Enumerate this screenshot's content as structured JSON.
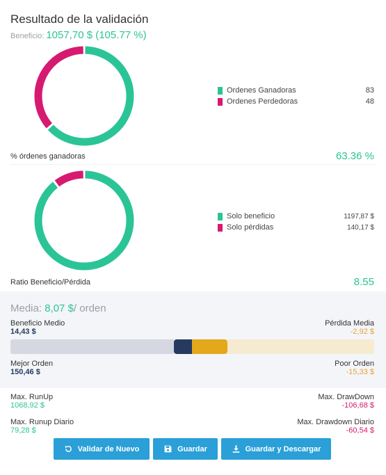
{
  "header": {
    "title": "Resultado de la validación",
    "benefit_label": "Beneficio:",
    "benefit_value": "1057,70 $",
    "benefit_pct": "(105.77 %)"
  },
  "colors": {
    "green": "#2bc496",
    "pink": "#d61a71",
    "navy": "#253a5e",
    "gold": "#e4a81d",
    "orange": "#e8a33b",
    "red": "#d61a71",
    "blue": "#2a9fd8"
  },
  "orders": {
    "legend": [
      {
        "name": "Ordenes Ganadoras",
        "value": "83",
        "color": "#2bc496"
      },
      {
        "name": "Ordenes Perdedoras",
        "value": "48",
        "color": "#d61a71"
      }
    ],
    "win_fraction": 0.6336,
    "stat_label": "% órdenes ganadoras",
    "stat_value": "63.36 %"
  },
  "profit": {
    "legend": [
      {
        "name": "Solo beneficio",
        "value": "1197,87 $",
        "color": "#2bc496"
      },
      {
        "name": "Solo pérdidas",
        "value": "140,17 $",
        "color": "#d61a71"
      }
    ],
    "profit_fraction": 0.8952,
    "stat_label": "Ratio Beneficio/Pérdida",
    "stat_value": "8.55"
  },
  "media": {
    "label": "Media:",
    "value": "8,07 $",
    "unit": "/ orden",
    "avg_profit_label": "Beneficio Medio",
    "avg_profit_value": "14,43 $",
    "avg_loss_label": "Pérdida Media",
    "avg_loss_value": "-2,92 $",
    "best_label": "Mejor Orden",
    "best_value": "150,46 $",
    "worst_label": "Poor Orden",
    "worst_value": "-15,33 $"
  },
  "extremes": {
    "runup_label": "Max. RunUp",
    "runup_value": "1068,92 $",
    "drawdown_label": "Max. DrawDown",
    "drawdown_value": "-106,68 $",
    "runup_daily_label": "Max. Runup Diario",
    "runup_daily_value": "79,28 $",
    "drawdown_daily_label": "Max. Drawdown Diario",
    "drawdown_daily_value": "-60,54 $"
  },
  "buttons": {
    "validate": "Validar de Nuevo",
    "save": "Guardar",
    "save_download": "Guardar y Descargar"
  }
}
